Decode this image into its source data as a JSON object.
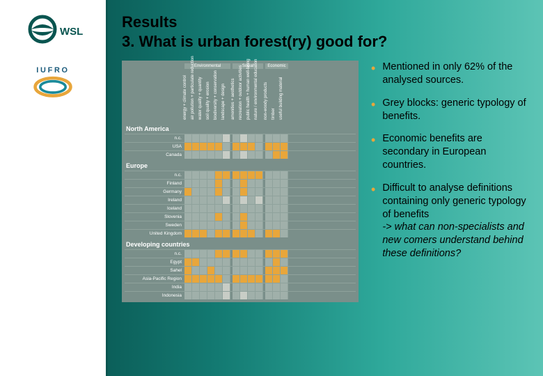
{
  "title_line1": "Results",
  "title_line2": "3. What is urban forest(ry) good for?",
  "bullets": [
    "Mentioned in only 62% of the analysed sources.",
    "Grey blocks: generic typology of benefits.",
    "Economic benefits are secondary in European countries.",
    "Difficult to analyse definitions containing only generic typology of benefits"
  ],
  "bullet4_sub": "-> what can non-specialists and new comers understand behind these definitions?",
  "logos": {
    "wsl": "WSL",
    "iufro": "IUFRO"
  },
  "accent_color": "#e8a63b",
  "chart": {
    "bg": "#7a8f8a",
    "cell_empty": "#a0b0aa",
    "cell_mark": "#e8a63b",
    "cell_grey": "#c8cdc6",
    "column_groups": [
      {
        "title": "Environmental",
        "cols": [
          "energy + climate control",
          "air pollution + particulate reduction",
          "water quality + quantity",
          "soil quality + erosion",
          "biodiversity + conservation",
          "landscape + design"
        ]
      },
      {
        "title": "Social",
        "cols": [
          "amenities + aesthetics",
          "recreation + outdoor activities",
          "public health + human well-being",
          "nature / environmental education"
        ]
      },
      {
        "title": "Economic",
        "cols": [
          "non-woody products",
          "timber",
          "useful building material"
        ]
      }
    ],
    "group_widths": [
      66,
      44,
      33
    ],
    "regions": [
      {
        "name": "North America",
        "rows": [
          {
            "label": "n.c.",
            "v": [
              "",
              "",
              "",
              "",
              "",
              "g",
              "",
              "g",
              "",
              "",
              "",
              "",
              ""
            ]
          },
          {
            "label": "USA",
            "v": [
              "m",
              "m",
              "m",
              "m",
              "m",
              "",
              "m",
              "m",
              "m",
              "",
              "m",
              "m",
              "m"
            ]
          },
          {
            "label": "Canada",
            "v": [
              "",
              "",
              "",
              "",
              "",
              "g",
              "",
              "g",
              "",
              "",
              "",
              "m",
              "m"
            ]
          }
        ]
      },
      {
        "name": "Europe",
        "rows": [
          {
            "label": "n.c.",
            "v": [
              "",
              "",
              "",
              "",
              "m",
              "m",
              "m",
              "m",
              "m",
              "m",
              "",
              "",
              ""
            ]
          },
          {
            "label": "Finland",
            "v": [
              "",
              "",
              "",
              "",
              "m",
              "",
              "",
              "m",
              "",
              "",
              "",
              "",
              ""
            ]
          },
          {
            "label": "Germany",
            "v": [
              "m",
              "",
              "",
              "",
              "m",
              "",
              "",
              "m",
              "",
              "",
              "",
              "",
              ""
            ]
          },
          {
            "label": "Ireland",
            "v": [
              "",
              "",
              "",
              "",
              "",
              "g",
              "",
              "g",
              "",
              "g",
              "",
              "",
              ""
            ]
          },
          {
            "label": "Iceland",
            "v": [
              "",
              "",
              "",
              "",
              "",
              "",
              "",
              "",
              "",
              "",
              "",
              "",
              ""
            ]
          },
          {
            "label": "Slovenia",
            "v": [
              "",
              "",
              "",
              "",
              "m",
              "",
              "",
              "m",
              "",
              "",
              "",
              "",
              ""
            ]
          },
          {
            "label": "Sweden",
            "v": [
              "",
              "",
              "",
              "",
              "",
              "",
              "",
              "m",
              "",
              "",
              "",
              "",
              ""
            ]
          },
          {
            "label": "United Kingdom",
            "v": [
              "m",
              "m",
              "m",
              "",
              "m",
              "m",
              "m",
              "m",
              "m",
              "",
              "m",
              "m",
              ""
            ]
          }
        ]
      },
      {
        "name": "Developing countries",
        "rows": [
          {
            "label": "n.c.",
            "v": [
              "",
              "",
              "",
              "",
              "m",
              "m",
              "m",
              "m",
              "",
              "",
              "m",
              "m",
              "m"
            ]
          },
          {
            "label": "Egypt",
            "v": [
              "m",
              "m",
              "",
              "",
              "",
              "",
              "",
              "",
              "",
              "",
              "",
              "m",
              ""
            ]
          },
          {
            "label": "Sahel",
            "v": [
              "m",
              "",
              "",
              "m",
              "",
              "",
              "",
              "",
              "",
              "",
              "m",
              "m",
              "m"
            ]
          },
          {
            "label": "Asia-Pacific Region",
            "v": [
              "m",
              "m",
              "m",
              "m",
              "m",
              "",
              "m",
              "m",
              "m",
              "m",
              "m",
              "m",
              ""
            ]
          },
          {
            "label": "India",
            "v": [
              "",
              "",
              "",
              "",
              "",
              "g",
              "",
              "",
              "",
              "",
              "",
              "",
              ""
            ]
          },
          {
            "label": "Indonesia",
            "v": [
              "",
              "",
              "",
              "",
              "",
              "g",
              "",
              "g",
              "",
              "",
              "",
              "",
              ""
            ]
          }
        ]
      }
    ]
  }
}
